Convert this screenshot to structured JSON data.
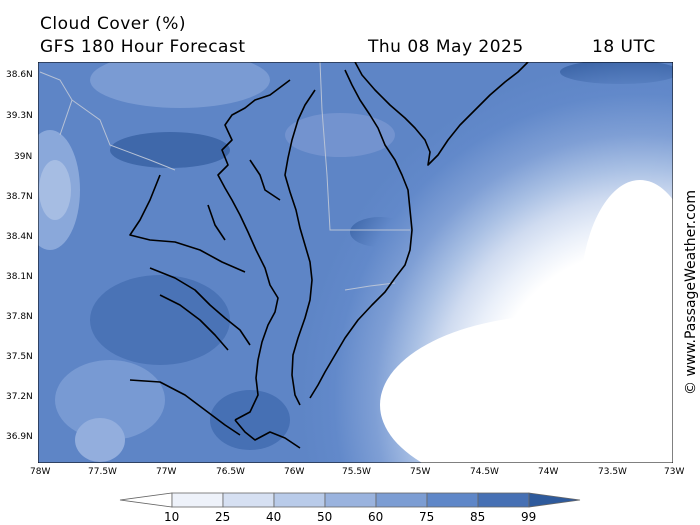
{
  "header": {
    "title": "Cloud Cover (%)",
    "model": "GFS 180 Hour Forecast",
    "date": "Thu 08 May 2025",
    "time": "18 UTC"
  },
  "watermark": "© www.PassageWeather.com",
  "axes": {
    "lat_labels": [
      "38.6N",
      "39.3N",
      "39N",
      "38.7N",
      "38.4N",
      "38.1N",
      "37.8N",
      "37.5N",
      "37.2N",
      "36.9N"
    ],
    "lon_labels": [
      "78W",
      "77.5W",
      "77W",
      "76.5W",
      "76W",
      "75.5W",
      "75W",
      "74.5W",
      "74W",
      "73.5W",
      "73W"
    ]
  },
  "colorbar": {
    "ticks": [
      "10",
      "25",
      "40",
      "50",
      "60",
      "75",
      "85",
      "99"
    ],
    "colors": [
      "#ffffff",
      "#eef2fa",
      "#d6e0f2",
      "#b9cbe9",
      "#9ab3de",
      "#7c9dd3",
      "#5f87c8",
      "#4670b4",
      "#2e5a9c"
    ]
  }
}
